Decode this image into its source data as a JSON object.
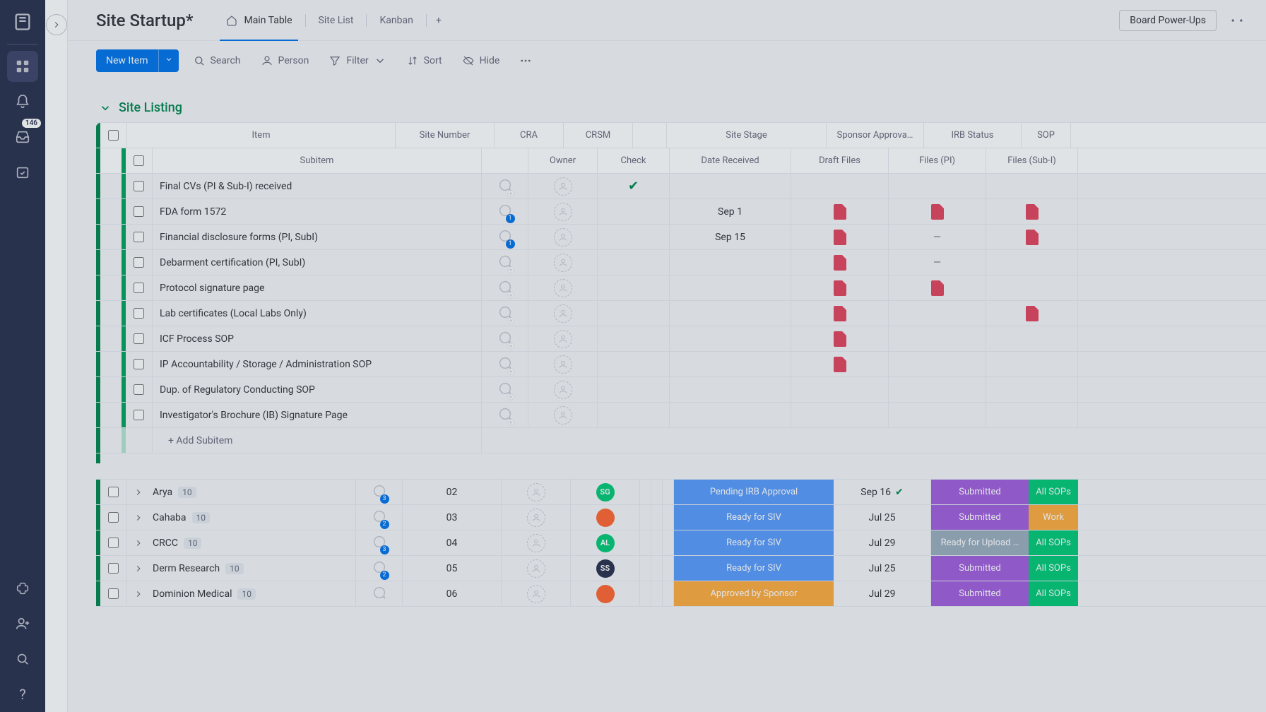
{
  "rail": {
    "inbox_count": "146"
  },
  "header": {
    "title": "Site Startup*",
    "tabs": [
      "Main Table",
      "Site List",
      "Kanban"
    ],
    "powerups": "Board Power-Ups"
  },
  "toolbar": {
    "newitem": "New Item",
    "search": "Search",
    "person": "Person",
    "filter": "Filter",
    "sort": "Sort",
    "hide": "Hide"
  },
  "group": {
    "name": "Site Listing",
    "color": "#00854d",
    "columns": [
      "Item",
      "Site Number",
      "CRA",
      "CRSM",
      "Site Stage",
      "Sponsor Approva…",
      "IRB Status",
      "SOP"
    ]
  },
  "sub_columns": [
    "Subitem",
    "Owner",
    "Check",
    "Date Received",
    "Draft Files",
    "Files (PI)",
    "Files (Sub-I)"
  ],
  "subitems": [
    {
      "name": "Final CVs (PI & Sub-I) received",
      "chat": null,
      "check": true,
      "date": "",
      "draft": false,
      "fpi": false,
      "fsub": false
    },
    {
      "name": "FDA form 1572",
      "chat": "1",
      "check": false,
      "date": "Sep 1",
      "draft": true,
      "fpi": true,
      "fsub": true
    },
    {
      "name": "Financial disclosure forms (PI, SubI)",
      "chat": "1",
      "check": false,
      "date": "Sep 15",
      "draft": true,
      "fpi": "dash",
      "fsub": true
    },
    {
      "name": "Debarment certification (PI, SubI)",
      "chat": null,
      "check": false,
      "date": "",
      "draft": true,
      "fpi": "dash",
      "fsub": false
    },
    {
      "name": "Protocol signature page",
      "chat": null,
      "check": false,
      "date": "",
      "draft": true,
      "fpi": true,
      "fsub": false
    },
    {
      "name": "Lab certificates (Local Labs Only)",
      "chat": null,
      "check": false,
      "date": "",
      "draft": true,
      "fpi": false,
      "fsub": true
    },
    {
      "name": "ICF Process SOP",
      "chat": null,
      "check": false,
      "date": "",
      "draft": true,
      "fpi": false,
      "fsub": false
    },
    {
      "name": "IP Accountability / Storage / Administration SOP",
      "chat": null,
      "check": false,
      "date": "",
      "draft": true,
      "fpi": false,
      "fsub": false
    },
    {
      "name": "Dup. of Regulatory Conducting SOP",
      "chat": null,
      "check": false,
      "date": "",
      "draft": false,
      "fpi": false,
      "fsub": false
    },
    {
      "name": "Investigator's Brochure (IB) Signature Page",
      "chat": null,
      "check": false,
      "date": "",
      "draft": false,
      "fpi": false,
      "fsub": false
    }
  ],
  "add_subitem": "+ Add Subitem",
  "sites": [
    {
      "name": "Arya",
      "count": "10",
      "chat": "3",
      "num": "02",
      "crsm": {
        "txt": "SG",
        "bg": "#00c875"
      },
      "stage": "Pending IRB Approval",
      "stage_bg": "#579bfc",
      "approv": "Sep 16",
      "approv_chk": true,
      "irb": "Submitted",
      "irb_bg": "#a25ddc",
      "sop": "All SOPs",
      "sop_bg": "#00c875"
    },
    {
      "name": "Cahaba",
      "count": "10",
      "chat": "2",
      "num": "03",
      "crsm": {
        "img": true,
        "bg": "#ff642e"
      },
      "stage": "Ready for SIV",
      "stage_bg": "#579bfc",
      "approv": "Jul 25",
      "approv_chk": false,
      "irb": "Submitted",
      "irb_bg": "#a25ddc",
      "sop": "Work",
      "sop_bg": "#fdab3d"
    },
    {
      "name": "CRCC",
      "count": "10",
      "chat": "3",
      "num": "04",
      "crsm": {
        "txt": "AL",
        "bg": "#00c875"
      },
      "stage": "Ready for SIV",
      "stage_bg": "#579bfc",
      "approv": "Jul 29",
      "approv_chk": false,
      "irb": "Ready for Upload …",
      "irb_bg": "#9aadbd",
      "sop": "All SOPs",
      "sop_bg": "#00c875"
    },
    {
      "name": "Derm Research",
      "count": "10",
      "chat": "2",
      "num": "05",
      "crsm": {
        "txt": "SS",
        "bg": "#292f4c"
      },
      "stage": "Ready for SIV",
      "stage_bg": "#579bfc",
      "approv": "Jul 25",
      "approv_chk": false,
      "irb": "Submitted",
      "irb_bg": "#a25ddc",
      "sop": "All SOPs",
      "sop_bg": "#00c875"
    },
    {
      "name": "Dominion Medical",
      "count": "10",
      "chat": "",
      "num": "06",
      "crsm": {
        "img": true,
        "bg": "#ff642e"
      },
      "stage": "Approved by Sponsor",
      "stage_bg": "#fdab3d",
      "approv": "Jul 29",
      "approv_chk": false,
      "irb": "Submitted",
      "irb_bg": "#a25ddc",
      "sop": "All SOPs",
      "sop_bg": "#00c875"
    }
  ]
}
